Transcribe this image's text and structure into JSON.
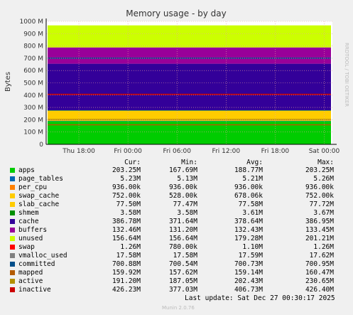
{
  "chart_data": {
    "type": "area",
    "title": "Memory usage - by day",
    "ylabel": "Bytes",
    "ylim": [
      0,
      1000000000
    ],
    "yticks": [
      "0",
      "100 M",
      "200 M",
      "300 M",
      "400 M",
      "500 M",
      "600 M",
      "700 M",
      "800 M",
      "900 M",
      "1000 M"
    ],
    "xticks": [
      "Thu 18:00",
      "Fri 00:00",
      "Fri 06:00",
      "Fri 12:00",
      "Fri 18:00",
      "Sat 00:00"
    ],
    "x_hours": [
      18,
      24,
      30,
      36,
      42,
      48
    ],
    "x_range_hours": [
      14,
      49
    ],
    "grid": true,
    "watermark": "RRDTOOL / TOBI OETIKER",
    "stack_order": [
      "apps",
      "page_tables",
      "per_cpu",
      "swap_cache",
      "slab_cache",
      "shmem",
      "cache",
      "buffers",
      "unused"
    ],
    "series": [
      {
        "name": "apps",
        "color": "#00cc00",
        "cur": "203.25M",
        "min": "167.69M",
        "avg": "188.77M",
        "max": "203.25M",
        "mean": 188770000
      },
      {
        "name": "page_tables",
        "color": "#0066b3",
        "cur": "5.23M",
        "min": "5.13M",
        "avg": "5.21M",
        "max": "5.26M",
        "mean": 5210000
      },
      {
        "name": "per_cpu",
        "color": "#ff8000",
        "cur": "936.00k",
        "min": "936.00k",
        "avg": "936.00k",
        "max": "936.00k",
        "mean": 936000
      },
      {
        "name": "swap_cache",
        "color": "#ffcc00",
        "cur": "752.00k",
        "min": "528.00k",
        "avg": "678.06k",
        "max": "752.00k",
        "mean": 678000
      },
      {
        "name": "slab_cache",
        "color": "#ffcc00",
        "cur": "77.50M",
        "min": "77.47M",
        "avg": "77.58M",
        "max": "77.72M",
        "mean": 77580000
      },
      {
        "name": "shmem",
        "color": "#008f00",
        "cur": "3.58M",
        "min": "3.58M",
        "avg": "3.61M",
        "max": "3.67M",
        "mean": 3610000
      },
      {
        "name": "cache",
        "color": "#330099",
        "cur": "386.78M",
        "min": "371.64M",
        "avg": "378.64M",
        "max": "386.95M",
        "mean": 378640000
      },
      {
        "name": "buffers",
        "color": "#990099",
        "cur": "132.46M",
        "min": "131.20M",
        "avg": "132.43M",
        "max": "133.45M",
        "mean": 132430000
      },
      {
        "name": "unused",
        "color": "#ccff00",
        "cur": "156.64M",
        "min": "156.64M",
        "avg": "179.28M",
        "max": "201.21M",
        "mean": 179280000
      },
      {
        "name": "swap",
        "color": "#ff0000",
        "cur": "1.26M",
        "min": "780.00k",
        "avg": "1.10M",
        "max": "1.26M"
      },
      {
        "name": "vmalloc_used",
        "color": "#808080",
        "cur": "17.58M",
        "min": "17.58M",
        "avg": "17.59M",
        "max": "17.62M"
      },
      {
        "name": "committed",
        "color": "#004e8a",
        "cur": "700.88M",
        "min": "700.54M",
        "avg": "700.73M",
        "max": "700.95M",
        "mean": 700730000
      },
      {
        "name": "mapped",
        "color": "#b35a00",
        "cur": "159.92M",
        "min": "157.62M",
        "avg": "159.14M",
        "max": "160.47M",
        "mean": 159140000
      },
      {
        "name": "active",
        "color": "#b38f00",
        "cur": "191.20M",
        "min": "187.05M",
        "avg": "202.43M",
        "max": "230.65M"
      },
      {
        "name": "inactive",
        "color": "#cc0000",
        "cur": "426.23M",
        "min": "377.03M",
        "avg": "406.73M",
        "max": "426.40M"
      }
    ]
  },
  "legend_headers": {
    "cur": "Cur:",
    "min": "Min:",
    "avg": "Avg:",
    "max": "Max:"
  },
  "footer": {
    "last_update": "Last update: Sat Dec 27 00:30:17 2025",
    "version": "Munin 2.0.76"
  }
}
